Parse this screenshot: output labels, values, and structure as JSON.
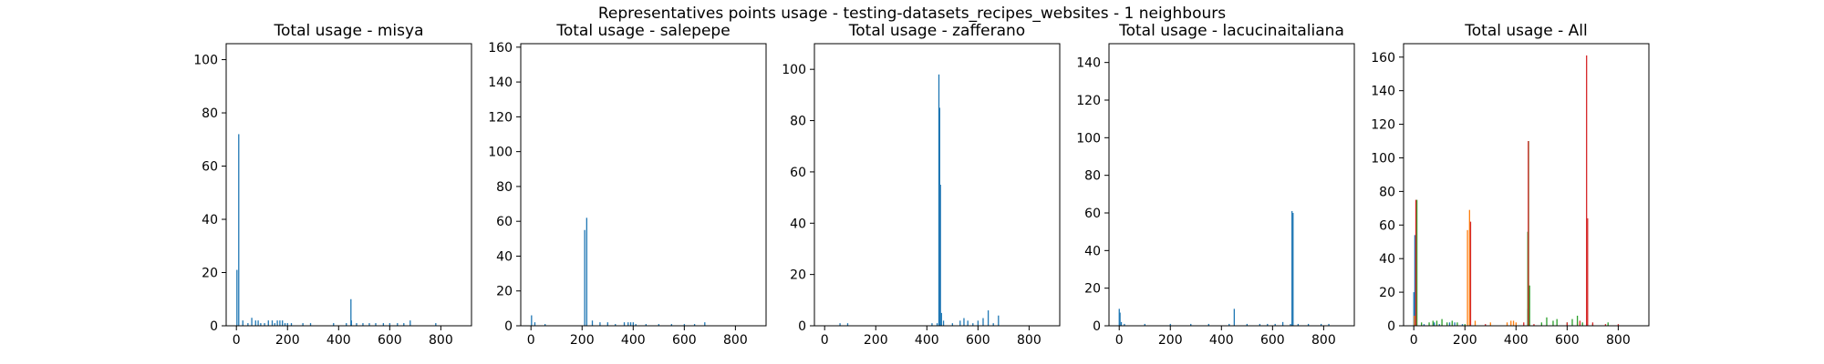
{
  "page": {
    "title": "Representatives points usage - testing-datasets_recipes_websites - 1 neighbours"
  },
  "chart_data": [
    {
      "type": "bar",
      "title": "Total usage - misya",
      "xlim": [
        -40,
        920
      ],
      "ylim": [
        0,
        106
      ],
      "xticks": [
        0,
        200,
        400,
        600,
        800
      ],
      "yticks": [
        0,
        20,
        40,
        60,
        80,
        100
      ],
      "series": [
        {
          "color": "#1f77b4",
          "x": [
            2,
            9,
            25,
            45,
            60,
            75,
            85,
            95,
            110,
            125,
            140,
            150,
            160,
            170,
            180,
            190,
            200,
            215,
            260,
            290,
            380,
            430,
            448,
            450,
            470,
            495,
            520,
            545,
            575,
            600,
            630,
            655,
            680,
            780
          ],
          "y": [
            21,
            72,
            2,
            1,
            3,
            2,
            2,
            1,
            1,
            2,
            2,
            1,
            2,
            2,
            2,
            1,
            1,
            1,
            1,
            1,
            1,
            1,
            10,
            2,
            1,
            1,
            1,
            1,
            1,
            1,
            1,
            1,
            2,
            1
          ]
        }
      ]
    },
    {
      "type": "bar",
      "title": "Total usage - salepepe",
      "xlim": [
        -40,
        920
      ],
      "ylim": [
        0,
        162
      ],
      "xticks": [
        0,
        200,
        400,
        600,
        800
      ],
      "yticks": [
        0,
        20,
        40,
        60,
        80,
        100,
        120,
        140,
        160
      ],
      "series": [
        {
          "color": "#1f77b4",
          "x": [
            2,
            15,
            55,
            210,
            218,
            240,
            270,
            300,
            330,
            365,
            380,
            390,
            400,
            410,
            450,
            500,
            550,
            600,
            640,
            680
          ],
          "y": [
            6,
            2,
            1,
            55,
            62,
            3,
            2,
            2,
            1,
            2,
            2,
            2,
            2,
            1,
            1,
            1,
            1,
            1,
            1,
            2
          ]
        }
      ]
    },
    {
      "type": "bar",
      "title": "Total usage - zafferano",
      "xlim": [
        -40,
        920
      ],
      "ylim": [
        0,
        110
      ],
      "xticks": [
        0,
        200,
        400,
        600,
        800
      ],
      "yticks": [
        0,
        20,
        40,
        60,
        80,
        100
      ],
      "series": [
        {
          "color": "#1f77b4",
          "x": [
            60,
            90,
            420,
            440,
            447,
            450,
            453,
            457,
            465,
            500,
            530,
            545,
            560,
            580,
            600,
            620,
            640,
            660,
            680
          ],
          "y": [
            1,
            1,
            1,
            1,
            98,
            85,
            55,
            5,
            2,
            1,
            2,
            3,
            2,
            1,
            2,
            3,
            6,
            1,
            4
          ]
        }
      ]
    },
    {
      "type": "bar",
      "title": "Total usage - lacucinaitaliana",
      "xlim": [
        -40,
        920
      ],
      "ylim": [
        0,
        150
      ],
      "xticks": [
        0,
        200,
        400,
        600,
        800
      ],
      "yticks": [
        0,
        20,
        40,
        60,
        80,
        100,
        120,
        140
      ],
      "series": [
        {
          "color": "#1f77b4",
          "x": [
            0,
            3,
            8,
            20,
            100,
            200,
            280,
            350,
            430,
            450,
            500,
            550,
            580,
            610,
            640,
            670,
            676,
            680,
            700,
            740,
            790,
            820
          ],
          "y": [
            9,
            7,
            2,
            1,
            1,
            1,
            1,
            1,
            1,
            9,
            1,
            1,
            1,
            1,
            2,
            1,
            61,
            60,
            1,
            1,
            1,
            1
          ]
        }
      ]
    },
    {
      "type": "bar",
      "title": "Total usage - All",
      "xlim": [
        -40,
        920
      ],
      "ylim": [
        0,
        168
      ],
      "xticks": [
        0,
        200,
        400,
        600,
        800
      ],
      "yticks": [
        0,
        20,
        40,
        60,
        80,
        100,
        120,
        140,
        160
      ],
      "series": [
        {
          "color": "#1f77b4",
          "x": [
            0,
            4,
            40,
            80,
            100,
            140,
            160,
            190,
            446,
            450
          ],
          "y": [
            20,
            54,
            1,
            2,
            1,
            2,
            2,
            1,
            10,
            3
          ]
        },
        {
          "color": "#ff7f0e",
          "x": [
            2,
            210,
            218,
            240,
            300,
            365,
            380,
            390,
            400,
            640
          ],
          "y": [
            6,
            57,
            69,
            3,
            2,
            2,
            3,
            3,
            2,
            2
          ]
        },
        {
          "color": "#2ca02c",
          "x": [
            12,
            30,
            60,
            75,
            90,
            110,
            130,
            150,
            170,
            200,
            446,
            449,
            453,
            500,
            520,
            545,
            560,
            600,
            620,
            640,
            660,
            700,
            760
          ],
          "y": [
            75,
            2,
            2,
            3,
            3,
            4,
            2,
            3,
            2,
            1,
            56,
            110,
            24,
            2,
            5,
            3,
            4,
            2,
            4,
            6,
            2,
            1,
            2
          ]
        },
        {
          "color": "#d62728",
          "x": [
            8,
            222,
            280,
            430,
            448,
            470,
            600,
            650,
            676,
            680,
            700,
            750,
            800
          ],
          "y": [
            75,
            62,
            1,
            2,
            110,
            1,
            2,
            3,
            161,
            64,
            2,
            1,
            1
          ]
        }
      ]
    }
  ]
}
